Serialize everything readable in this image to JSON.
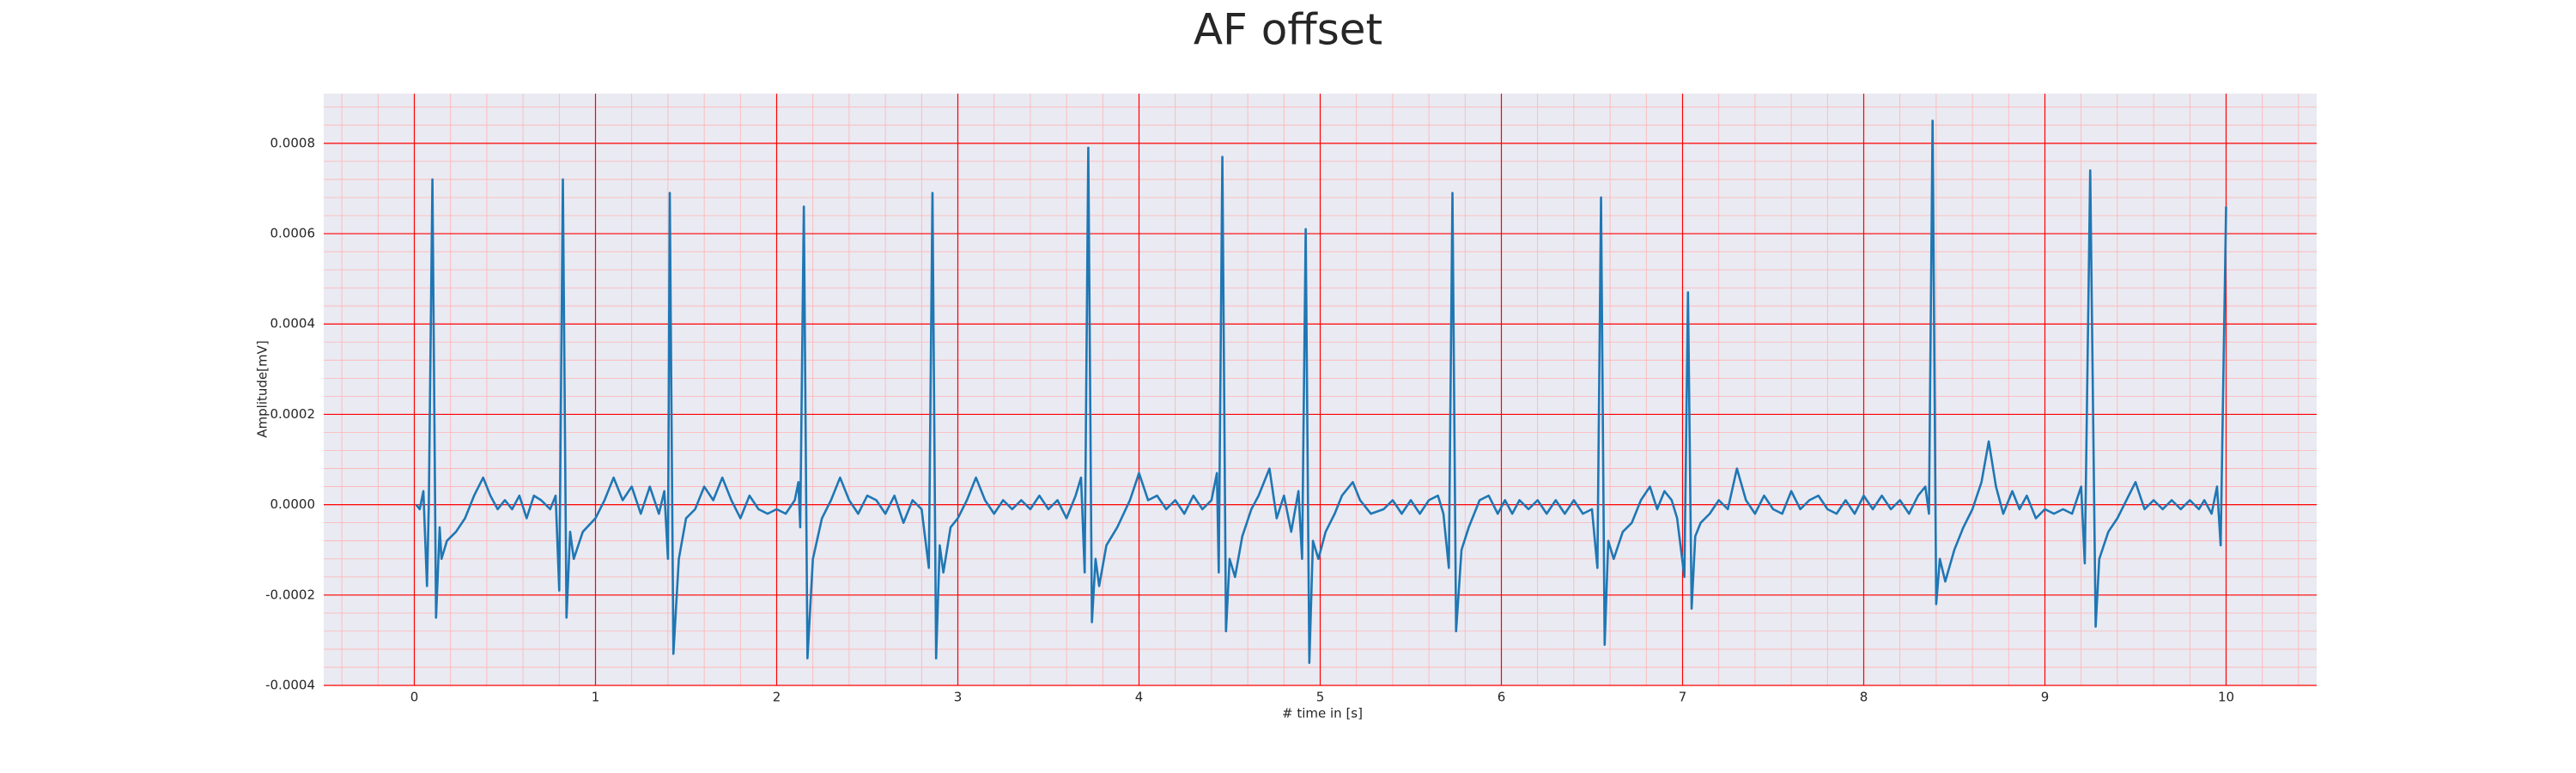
{
  "chart_data": {
    "type": "line",
    "title": "AF offset",
    "xlabel": "# time in [s]",
    "ylabel": "Amplitude[mV]",
    "color": "#1f77b4",
    "grid": true,
    "minor_grid": true,
    "background": "#eaeaf2",
    "grid_color": "#ff0000",
    "minor_grid_color": "#ffb3b3",
    "xlim": [
      -0.5,
      10.5
    ],
    "xticks": [
      0,
      1,
      2,
      3,
      4,
      5,
      6,
      7,
      8,
      9,
      10
    ],
    "ylim": [
      -0.0004,
      0.00091
    ],
    "yticks": [
      -0.0004,
      -0.0002,
      {
        "value": 0,
        "label": "0.0000"
      },
      0.0002,
      0.0004,
      0.0006,
      0.0008
    ],
    "x": [
      0.01,
      0.03,
      0.05,
      0.07,
      0.08,
      0.1,
      0.12,
      0.14,
      0.15,
      0.18,
      0.23,
      0.28,
      0.33,
      0.38,
      0.42,
      0.46,
      0.5,
      0.54,
      0.58,
      0.62,
      0.66,
      0.7,
      0.75,
      0.78,
      0.8,
      0.82,
      0.84,
      0.86,
      0.88,
      0.93,
      1,
      1.05,
      1.1,
      1.15,
      1.2,
      1.25,
      1.3,
      1.35,
      1.38,
      1.4,
      1.41,
      1.43,
      1.46,
      1.5,
      1.55,
      1.6,
      1.65,
      1.7,
      1.75,
      1.8,
      1.85,
      1.9,
      1.95,
      2,
      2.05,
      2.1,
      2.12,
      2.13,
      2.15,
      2.17,
      2.2,
      2.25,
      2.3,
      2.35,
      2.4,
      2.45,
      2.5,
      2.55,
      2.6,
      2.65,
      2.7,
      2.75,
      2.8,
      2.84,
      2.86,
      2.88,
      2.9,
      2.92,
      2.96,
      3,
      3.05,
      3.1,
      3.15,
      3.2,
      3.25,
      3.3,
      3.35,
      3.4,
      3.45,
      3.5,
      3.55,
      3.6,
      3.65,
      3.68,
      3.7,
      3.72,
      3.74,
      3.76,
      3.78,
      3.82,
      3.88,
      3.95,
      4,
      4.05,
      4.1,
      4.15,
      4.2,
      4.25,
      4.3,
      4.35,
      4.4,
      4.43,
      4.44,
      4.46,
      4.48,
      4.5,
      4.53,
      4.57,
      4.62,
      4.66,
      4.72,
      4.76,
      4.8,
      4.84,
      4.88,
      4.9,
      4.92,
      4.94,
      4.96,
      4.99,
      5.03,
      5.08,
      5.12,
      5.18,
      5.22,
      5.28,
      5.35,
      5.4,
      5.45,
      5.5,
      5.55,
      5.6,
      5.65,
      5.68,
      5.71,
      5.73,
      5.75,
      5.78,
      5.82,
      5.88,
      5.93,
      5.98,
      6.02,
      6.06,
      6.1,
      6.15,
      6.2,
      6.25,
      6.3,
      6.35,
      6.4,
      6.45,
      6.5,
      6.53,
      6.55,
      6.57,
      6.59,
      6.62,
      6.67,
      6.72,
      6.77,
      6.82,
      6.86,
      6.9,
      6.94,
      6.97,
      7.01,
      7.03,
      7.05,
      7.07,
      7.1,
      7.15,
      7.2,
      7.25,
      7.3,
      7.35,
      7.4,
      7.45,
      7.5,
      7.55,
      7.6,
      7.65,
      7.7,
      7.75,
      7.8,
      7.85,
      7.9,
      7.95,
      8,
      8.05,
      8.1,
      8.15,
      8.2,
      8.25,
      8.3,
      8.34,
      8.36,
      8.38,
      8.4,
      8.42,
      8.45,
      8.5,
      8.55,
      8.6,
      8.65,
      8.69,
      8.73,
      8.77,
      8.82,
      8.86,
      8.9,
      8.95,
      9,
      9.05,
      9.1,
      9.15,
      9.2,
      9.22,
      9.25,
      9.28,
      9.3,
      9.35,
      9.4,
      9.45,
      9.5,
      9.55,
      9.6,
      9.65,
      9.7,
      9.75,
      9.8,
      9.85,
      9.88,
      9.92,
      9.95,
      9.97,
      10
    ],
    "values": [
      0,
      -1e-05,
      3e-05,
      -0.00018,
      0,
      0.00072,
      -0.00025,
      -5e-05,
      -0.00012,
      -8e-05,
      -6e-05,
      -3e-05,
      2e-05,
      6e-05,
      2e-05,
      -1e-05,
      1e-05,
      -1e-05,
      2e-05,
      -3e-05,
      2e-05,
      1e-05,
      -1e-05,
      2e-05,
      -0.00019,
      0.00072,
      -0.00025,
      -6e-05,
      -0.00012,
      -6e-05,
      -3e-05,
      1e-05,
      6e-05,
      1e-05,
      4e-05,
      -2e-05,
      4e-05,
      -2e-05,
      3e-05,
      -0.00012,
      0.00069,
      -0.00033,
      -0.00012,
      -3e-05,
      -1e-05,
      4e-05,
      1e-05,
      6e-05,
      1e-05,
      -3e-05,
      2e-05,
      -1e-05,
      -2e-05,
      -1e-05,
      -2e-05,
      1e-05,
      5e-05,
      -5e-05,
      0.00066,
      -0.00034,
      -0.00012,
      -3e-05,
      1e-05,
      6e-05,
      1e-05,
      -2e-05,
      2e-05,
      1e-05,
      -2e-05,
      2e-05,
      -4e-05,
      1e-05,
      -1e-05,
      -0.00014,
      0.00069,
      -0.00034,
      -9e-05,
      -0.00015,
      -5e-05,
      -3e-05,
      1e-05,
      6e-05,
      1e-05,
      -2e-05,
      1e-05,
      -1e-05,
      1e-05,
      -1e-05,
      2e-05,
      -1e-05,
      1e-05,
      -3e-05,
      2e-05,
      6e-05,
      -0.00015,
      0.00079,
      -0.00026,
      -0.00012,
      -0.00018,
      -9e-05,
      -5e-05,
      1e-05,
      7e-05,
      1e-05,
      2e-05,
      -1e-05,
      1e-05,
      -2e-05,
      2e-05,
      -1e-05,
      1e-05,
      7e-05,
      -0.00015,
      0.00077,
      -0.00028,
      -0.00012,
      -0.00016,
      -7e-05,
      -1e-05,
      2e-05,
      8e-05,
      -3e-05,
      2e-05,
      -6e-05,
      3e-05,
      -0.00012,
      0.00061,
      -0.00035,
      -8e-05,
      -0.00012,
      -6e-05,
      -2e-05,
      2e-05,
      5e-05,
      1e-05,
      -2e-05,
      -1e-05,
      1e-05,
      -2e-05,
      1e-05,
      -2e-05,
      1e-05,
      2e-05,
      -2e-05,
      -0.00014,
      0.00069,
      -0.00028,
      -0.0001,
      -5e-05,
      1e-05,
      2e-05,
      -2e-05,
      1e-05,
      -2e-05,
      1e-05,
      -1e-05,
      1e-05,
      -2e-05,
      1e-05,
      -2e-05,
      1e-05,
      -2e-05,
      -1e-05,
      -0.00014,
      0.00068,
      -0.00031,
      -8e-05,
      -0.00012,
      -6e-05,
      -4e-05,
      1e-05,
      4e-05,
      -1e-05,
      3e-05,
      1e-05,
      -3e-05,
      -0.00016,
      0.00047,
      -0.00023,
      -7e-05,
      -4e-05,
      -2e-05,
      1e-05,
      -1e-05,
      8e-05,
      1e-05,
      -2e-05,
      2e-05,
      -1e-05,
      -2e-05,
      3e-05,
      -1e-05,
      1e-05,
      2e-05,
      -1e-05,
      -2e-05,
      1e-05,
      -2e-05,
      2e-05,
      -1e-05,
      2e-05,
      -1e-05,
      1e-05,
      -2e-05,
      2e-05,
      4e-05,
      -2e-05,
      0.00085,
      -0.00022,
      -0.00012,
      -0.00017,
      -0.0001,
      -5e-05,
      -1e-05,
      5e-05,
      0.00014,
      4e-05,
      -2e-05,
      3e-05,
      -1e-05,
      2e-05,
      -3e-05,
      -1e-05,
      -2e-05,
      -1e-05,
      -2e-05,
      4e-05,
      -0.00013,
      0.00074,
      -0.00027,
      -0.00012,
      -6e-05,
      -3e-05,
      1e-05,
      5e-05,
      -1e-05,
      1e-05,
      -1e-05,
      1e-05,
      -1e-05,
      1e-05,
      -1e-05,
      1e-05,
      -2e-05,
      4e-05,
      -9e-05,
      0.00066
    ]
  }
}
